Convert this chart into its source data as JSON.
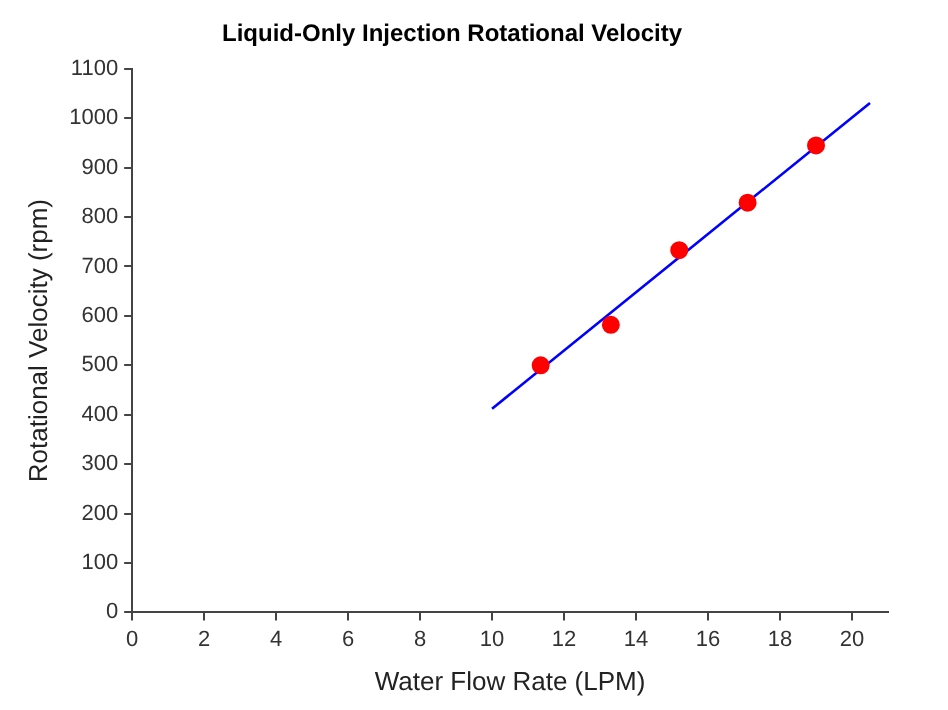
{
  "chart_data": {
    "type": "scatter",
    "title": "Liquid-Only Injection Rotational Velocity",
    "xlabel": "Water Flow Rate (LPM)",
    "ylabel": "Rotational Velocity (rpm)",
    "xlim": [
      0,
      21
    ],
    "xticks": [
      0,
      2,
      4,
      6,
      8,
      10,
      12,
      14,
      16,
      18,
      20
    ],
    "ylim": [
      0,
      1100
    ],
    "yticks": [
      0,
      100,
      200,
      300,
      400,
      500,
      600,
      700,
      800,
      900,
      1000,
      1100
    ],
    "grid": false,
    "legend": false,
    "marker": "circle",
    "series": [
      {
        "type": "scatter",
        "color": "#ff0000",
        "x": [
          11.35,
          13.3,
          15.2,
          17.1,
          19.0
        ],
        "values": [
          500,
          582,
          733,
          829,
          945
        ]
      },
      {
        "type": "line",
        "color": "#0000ff",
        "marker": "none",
        "x": [
          10.0,
          20.5
        ],
        "values": [
          412,
          1031
        ]
      }
    ]
  }
}
